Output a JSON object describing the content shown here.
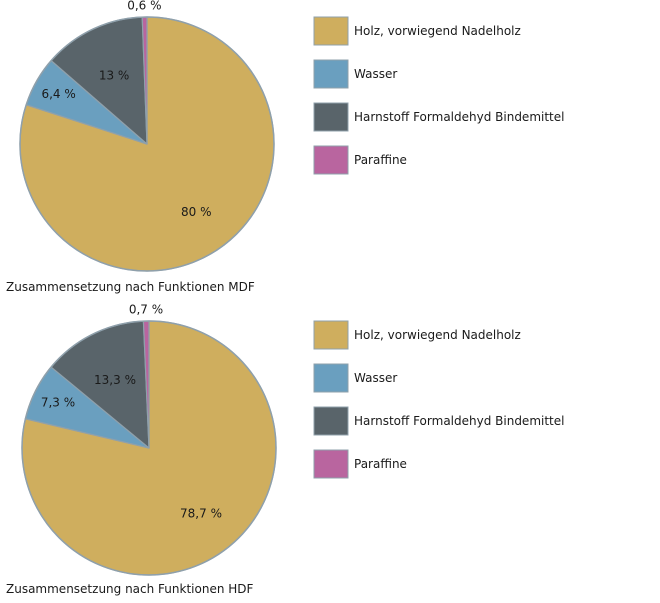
{
  "chart_data": [
    {
      "type": "pie",
      "title": "Zusammensetzung nach Funktionen MDF",
      "categories": [
        "Holz, vorwiegend Nadelholz",
        "Wasser",
        "Harnstoff Formaldehyd Bindemittel",
        "Paraffine"
      ],
      "values": [
        80,
        6.4,
        13,
        0.6
      ],
      "labels": [
        "80 %",
        "6,4 %",
        "13 %",
        "0,6 %"
      ],
      "colors": [
        "#cfae5e",
        "#6a9fbf",
        "#59646a",
        "#b9659f"
      ],
      "legend": "right"
    },
    {
      "type": "pie",
      "title": "Zusammensetzung nach Funktionen HDF",
      "categories": [
        "Holz, vorwiegend Nadelholz",
        "Wasser",
        "Harnstoff Formaldehyd Bindemittel",
        "Paraffine"
      ],
      "values": [
        78.7,
        7.3,
        13.3,
        0.7
      ],
      "labels": [
        "78,7 %",
        "7,3 %",
        "13,3 %",
        "0,7 %"
      ],
      "colors": [
        "#cfae5e",
        "#6a9fbf",
        "#59646a",
        "#b9659f"
      ],
      "legend": "right"
    }
  ]
}
